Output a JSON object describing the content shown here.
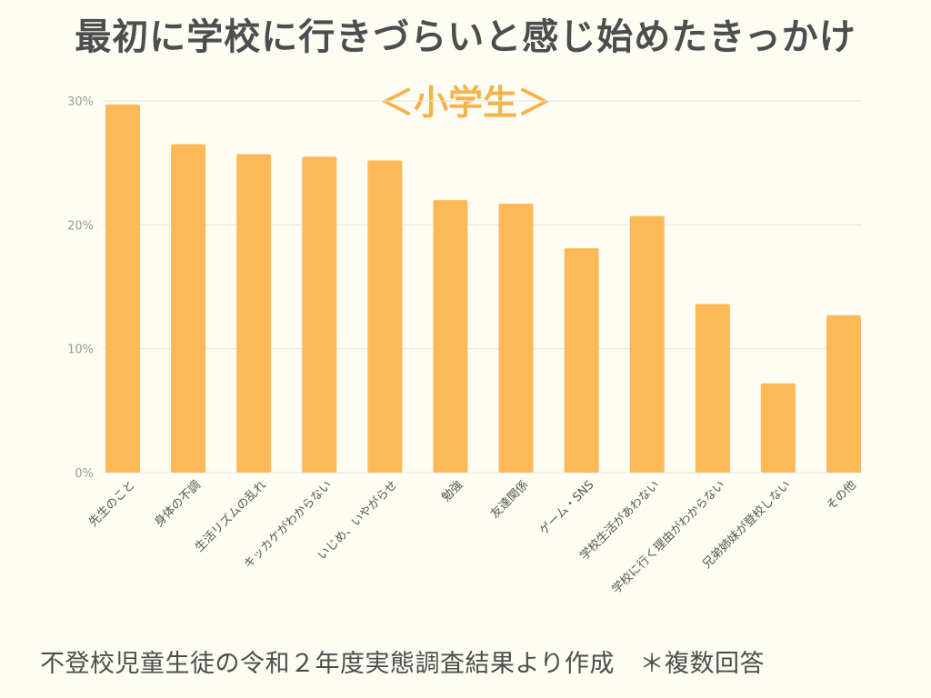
{
  "title": "最初に学校に行きづらいと感じ始めたきっかけ",
  "subtitle": "＜小学生＞",
  "footnote": "不登校児童生徒の令和２年度実態調査結果より作成　＊複数回答",
  "colors": {
    "bar": "#FDB857",
    "title": "#4D4D4D",
    "subtitle": "#F7B24A",
    "background": "#FDFDF3"
  },
  "chart_data": {
    "type": "bar",
    "categories": [
      "先生のこと",
      "身体の不調",
      "生活リズムの乱れ",
      "キッカケがわからない",
      "いじめ、いやがらせ",
      "勉強",
      "友達関係",
      "ゲーム・SNS",
      "学校生活があわない",
      "学校に行く理由がわからない",
      "兄弟姉妹が登校しない",
      "その他"
    ],
    "values": [
      29.7,
      26.5,
      25.7,
      25.5,
      25.2,
      22.0,
      21.7,
      18.1,
      20.7,
      13.6,
      7.2,
      12.7
    ],
    "yticks": [
      "0%",
      "10%",
      "20%",
      "30%"
    ],
    "ylim": [
      0,
      30
    ],
    "grid": true,
    "legend": "none"
  }
}
